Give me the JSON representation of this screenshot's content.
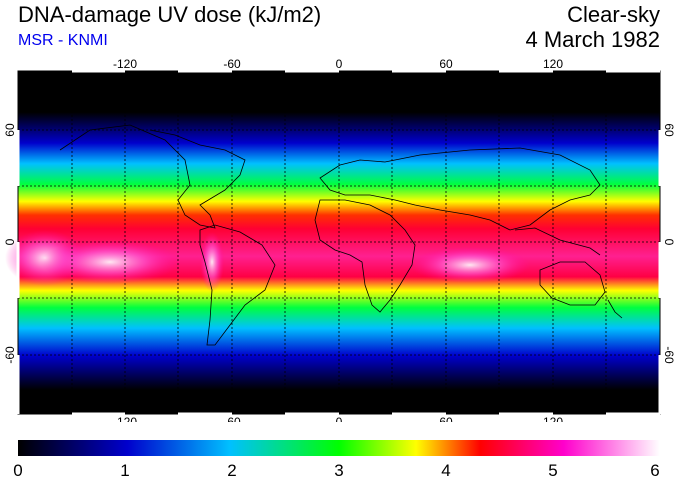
{
  "header": {
    "title": "DNA-damage UV dose (kJ/m2)",
    "subtitle": "MSR - KNMI",
    "subtitle_color": "#0000ee",
    "condition": "Clear-sky",
    "date": "4 March 1982"
  },
  "map": {
    "projection": "equirectangular",
    "lon_range": [
      -180,
      180
    ],
    "lat_range": [
      -90,
      90
    ],
    "lon_ticks": [
      -120,
      -60,
      0,
      60,
      120
    ],
    "lon_tick_labels": [
      "-120",
      "-60",
      "0",
      "60",
      "120"
    ],
    "lat_ticks": [
      60,
      0,
      -60
    ],
    "lat_tick_labels": [
      "60",
      "0",
      "-60"
    ],
    "gridlines": "dashed, every 30°",
    "coastlines": true,
    "ocean_land_fill": "colour-coded UV dose field"
  },
  "colorbar": {
    "min": 0,
    "max": 6,
    "tick_labels": [
      "0",
      "1",
      "2",
      "3",
      "4",
      "5",
      "6"
    ],
    "colors": [
      "#000000",
      "#0000cc",
      "#00c0ff",
      "#00ff00",
      "#ffff00",
      "#ff0000",
      "#ff00cc",
      "#ffffff"
    ]
  }
}
